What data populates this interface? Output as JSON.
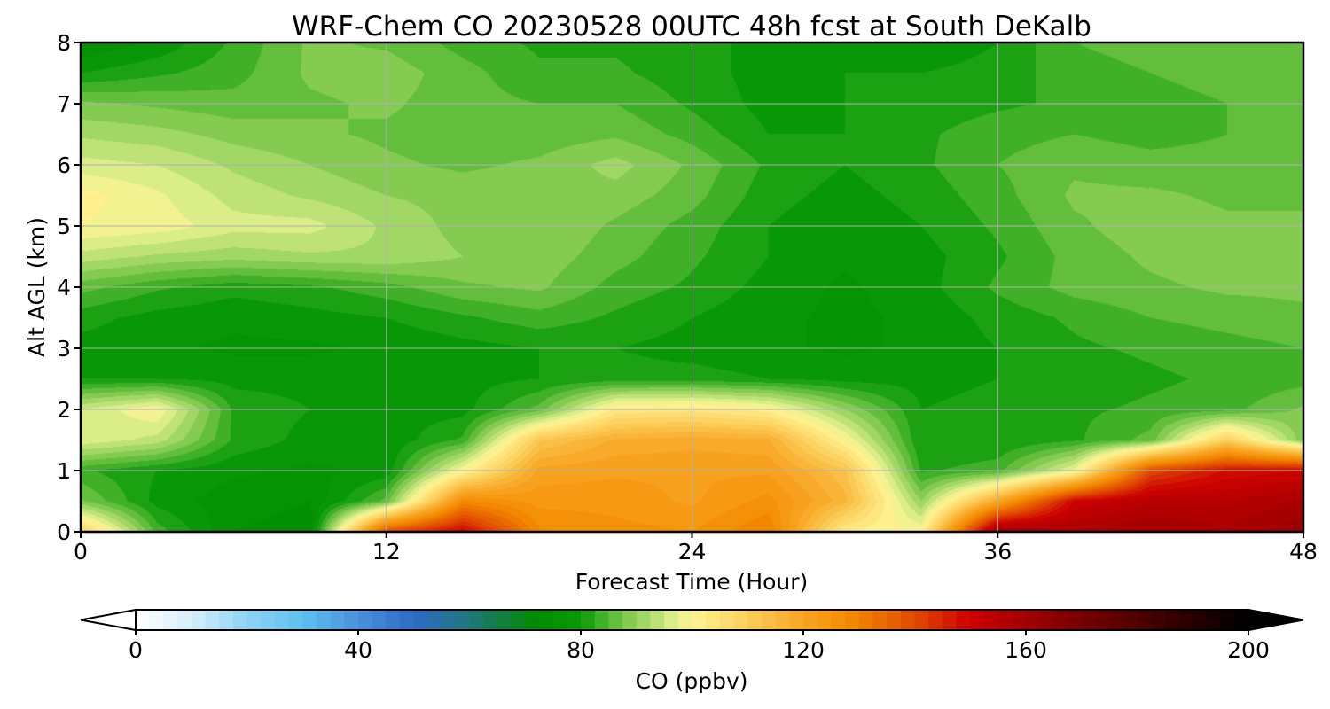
{
  "chart_data": {
    "type": "heatmap",
    "title": "WRF-Chem CO  20230528 00UTC 48h fcst at South DeKalb",
    "xlabel": "Forecast Time (Hour)",
    "ylabel": "Alt AGL (km)",
    "xlim": [
      0,
      48
    ],
    "ylim": [
      0,
      8
    ],
    "x_ticks": [
      "0",
      "12",
      "24",
      "36",
      "48"
    ],
    "y_ticks": [
      "0",
      "1",
      "2",
      "3",
      "4",
      "5",
      "6",
      "7",
      "8"
    ],
    "grid": true,
    "x": [
      0,
      3,
      6,
      9,
      12,
      15,
      18,
      21,
      24,
      27,
      30,
      33,
      36,
      39,
      42,
      45,
      48
    ],
    "y": [
      0,
      0.5,
      1,
      1.5,
      2,
      2.5,
      3,
      3.5,
      4,
      4.5,
      5,
      5.5,
      6,
      6.5,
      7,
      7.5,
      8
    ],
    "z": [
      [
        110,
        84,
        75,
        74,
        140,
        150,
        128,
        126,
        125,
        130,
        102,
        100,
        162,
        158,
        160,
        158,
        162
      ],
      [
        88,
        79,
        76,
        75,
        86,
        128,
        124,
        124,
        122,
        126,
        116,
        90,
        120,
        150,
        155,
        155,
        158
      ],
      [
        83,
        80,
        78,
        77,
        78,
        100,
        121,
        122,
        122,
        122,
        113,
        82,
        84,
        98,
        140,
        148,
        150
      ],
      [
        97,
        94,
        82,
        79,
        78,
        83,
        112,
        118,
        119,
        118,
        100,
        80,
        80,
        82,
        86,
        110,
        88
      ],
      [
        95,
        100,
        82,
        80,
        79,
        79,
        86,
        103,
        104,
        101,
        90,
        80,
        81,
        82,
        83,
        84,
        88
      ],
      [
        80,
        80,
        79,
        79,
        79,
        79,
        80,
        81,
        81,
        80,
        79,
        79,
        80,
        81,
        82,
        83,
        84
      ],
      [
        79,
        78,
        77,
        77,
        78,
        79,
        80,
        80,
        79,
        78,
        77,
        78,
        80,
        82,
        83,
        84,
        85
      ],
      [
        81,
        79,
        78,
        79,
        80,
        82,
        84,
        82,
        80,
        78,
        77,
        78,
        81,
        83,
        85,
        86,
        87
      ],
      [
        86,
        83,
        81,
        82,
        84,
        87,
        88,
        84,
        82,
        79,
        77,
        79,
        83,
        86,
        87,
        88,
        88
      ],
      [
        94,
        92,
        91,
        92,
        92,
        90,
        89,
        86,
        83,
        80,
        78,
        79,
        82,
        86,
        88,
        89,
        89
      ],
      [
        100,
        99,
        96,
        96,
        92,
        89,
        90,
        87,
        84,
        80,
        78,
        80,
        83,
        87,
        89,
        88,
        88
      ],
      [
        101,
        98,
        94,
        92,
        90,
        89,
        89,
        89,
        86,
        81,
        79,
        81,
        84,
        88,
        88,
        87,
        87
      ],
      [
        96,
        95,
        92,
        90,
        88,
        87,
        88,
        91,
        87,
        82,
        80,
        82,
        85,
        87,
        86,
        86,
        86
      ],
      [
        92,
        91,
        89,
        88,
        87,
        86,
        86,
        87,
        84,
        80,
        80,
        82,
        84,
        85,
        84,
        85,
        86
      ],
      [
        88,
        87,
        86,
        87,
        88,
        86,
        85,
        85,
        82,
        79,
        80,
        81,
        82,
        83,
        84,
        85,
        86
      ],
      [
        80,
        82,
        84,
        88,
        89,
        86,
        83,
        83,
        81,
        79,
        80,
        80,
        81,
        84,
        85,
        86,
        86
      ],
      [
        75,
        78,
        83,
        88,
        87,
        84,
        82,
        82,
        81,
        79,
        80,
        78,
        80,
        85,
        86,
        86,
        86
      ]
    ],
    "colorbar": {
      "label": "CO  (ppbv)",
      "min": 0,
      "max": 200,
      "ticks": [
        "0",
        "40",
        "80",
        "120",
        "160",
        "200"
      ],
      "extend": "both",
      "stops": [
        {
          "v": 0,
          "c": "#ffffff"
        },
        {
          "v": 10,
          "c": "#d6eefb"
        },
        {
          "v": 20,
          "c": "#8fd2f5"
        },
        {
          "v": 30,
          "c": "#5ec0ee"
        },
        {
          "v": 40,
          "c": "#4a90dc"
        },
        {
          "v": 50,
          "c": "#2f6bc4"
        },
        {
          "v": 60,
          "c": "#22767c"
        },
        {
          "v": 72,
          "c": "#008a00"
        },
        {
          "v": 80,
          "c": "#0a9a08"
        },
        {
          "v": 88,
          "c": "#7cc84c"
        },
        {
          "v": 96,
          "c": "#d8ec88"
        },
        {
          "v": 100,
          "c": "#fff494"
        },
        {
          "v": 110,
          "c": "#fbcf5c"
        },
        {
          "v": 120,
          "c": "#f9a524"
        },
        {
          "v": 128,
          "c": "#f48c00"
        },
        {
          "v": 140,
          "c": "#e04a00"
        },
        {
          "v": 150,
          "c": "#cc0000"
        },
        {
          "v": 165,
          "c": "#8c0000"
        },
        {
          "v": 185,
          "c": "#3c0000"
        },
        {
          "v": 200,
          "c": "#000000"
        }
      ]
    }
  }
}
